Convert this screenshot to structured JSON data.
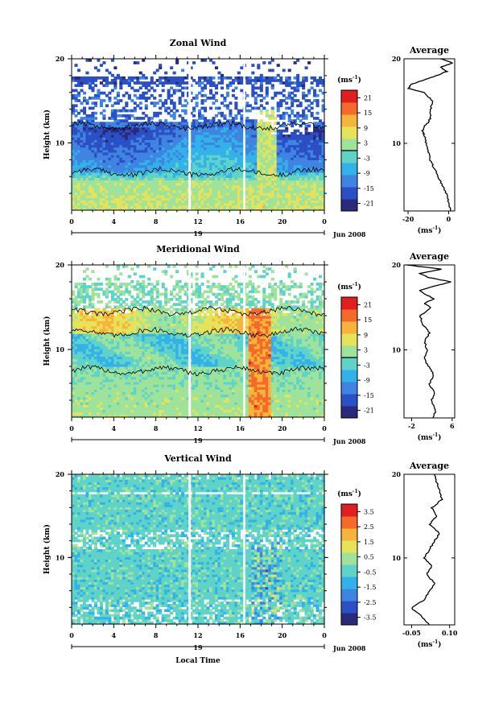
{
  "chart_data": [
    {
      "type": "heatmap",
      "title": "Zonal Wind",
      "ylabel": "Height (km)",
      "y_ticks": [
        "20",
        "10"
      ],
      "y_range": [
        2,
        20
      ],
      "x_ticks": [
        "0",
        "4",
        "8",
        "12",
        "16",
        "20",
        "0"
      ],
      "x_range": [
        0,
        24
      ],
      "day_label": "19",
      "date_label": "Jun 2008",
      "colorbar": {
        "unit": "(ms",
        "unit_exp": "-1",
        "unit_close": ")",
        "ticks": [
          "21",
          "15",
          "9",
          "3",
          "-3",
          "-9",
          "-15",
          "-21"
        ],
        "range": [
          -24,
          24
        ]
      },
      "average": {
        "title": "Average",
        "y_ticks": [
          "20",
          "10"
        ],
        "x_ticks": [
          "-20",
          "0"
        ],
        "x_range": [
          -22,
          3
        ],
        "xlabel": "(ms",
        "xlabel_exp": "-1",
        "xlabel_close": ")",
        "profile": [
          [
            2,
            1
          ],
          [
            3,
            0
          ],
          [
            4,
            -1
          ],
          [
            5,
            -3
          ],
          [
            6,
            -5
          ],
          [
            7,
            -7
          ],
          [
            8,
            -9
          ],
          [
            9,
            -10
          ],
          [
            10,
            -11
          ],
          [
            11,
            -12
          ],
          [
            11.5,
            -13
          ],
          [
            12,
            -12
          ],
          [
            12.5,
            -10
          ],
          [
            13,
            -9
          ],
          [
            14,
            -9
          ],
          [
            15,
            -8
          ],
          [
            16,
            -12
          ],
          [
            16.5,
            -20
          ],
          [
            17,
            -18
          ],
          [
            17.5,
            -12
          ],
          [
            18,
            -6
          ],
          [
            18.5,
            -1
          ],
          [
            19,
            -4
          ],
          [
            19.5,
            2
          ],
          [
            20,
            -4
          ]
        ]
      }
    },
    {
      "type": "heatmap",
      "title": "Meridional Wind",
      "ylabel": "Height (km)",
      "y_ticks": [
        "20",
        "10"
      ],
      "y_range": [
        2,
        20
      ],
      "x_ticks": [
        "0",
        "4",
        "8",
        "12",
        "16",
        "20",
        "0"
      ],
      "x_range": [
        0,
        24
      ],
      "day_label": "19",
      "date_label": "Jun 2008",
      "colorbar": {
        "unit": "(ms",
        "unit_exp": "-1",
        "unit_close": ")",
        "ticks": [
          "21",
          "15",
          "9",
          "3",
          "-3",
          "-9",
          "-15",
          "-21"
        ],
        "range": [
          -24,
          24
        ]
      },
      "average": {
        "title": "Average",
        "y_ticks": [
          "20",
          "10"
        ],
        "x_ticks": [
          "-2",
          "6"
        ],
        "x_range": [
          -3.5,
          6.5
        ],
        "xlabel": "(ms",
        "xlabel_exp": "-1",
        "xlabel_close": ")",
        "profile": [
          [
            2,
            2.2
          ],
          [
            3,
            2.8
          ],
          [
            4,
            1.9
          ],
          [
            5,
            2.5
          ],
          [
            6,
            1.5
          ],
          [
            7,
            2.4
          ],
          [
            8,
            1.4
          ],
          [
            9,
            0.5
          ],
          [
            10,
            1.0
          ],
          [
            11,
            0.6
          ],
          [
            12,
            1.5
          ],
          [
            13,
            0.2
          ],
          [
            14,
            -0.3
          ],
          [
            15,
            1.8
          ],
          [
            15.5,
            0.5
          ],
          [
            16,
            2.5
          ],
          [
            16.5,
            0.8
          ],
          [
            17,
            -0.5
          ],
          [
            17.5,
            2.5
          ],
          [
            18,
            5.8
          ],
          [
            18.5,
            1.5
          ],
          [
            19,
            -0.5
          ],
          [
            19.5,
            4
          ],
          [
            20,
            -3
          ]
        ]
      }
    },
    {
      "type": "heatmap",
      "title": "Vertical Wind",
      "ylabel": "Height (km)",
      "xlabel": "Local Time",
      "y_ticks": [
        "20",
        "10"
      ],
      "y_range": [
        2,
        20
      ],
      "x_ticks": [
        "0",
        "4",
        "8",
        "12",
        "16",
        "20",
        "0"
      ],
      "x_range": [
        0,
        24
      ],
      "day_label": "19",
      "date_label": "Jun 2008",
      "colorbar": {
        "unit": "(ms",
        "unit_exp": "-1",
        "unit_close": ")",
        "ticks": [
          "3.5",
          "2.5",
          "1.5",
          "0.5",
          "-0.5",
          "-1.5",
          "-2.5",
          "-3.5"
        ],
        "range": [
          -4,
          4
        ]
      },
      "average": {
        "title": "Average",
        "y_ticks": [
          "20",
          "10"
        ],
        "x_ticks": [
          "-0.05",
          "0.10"
        ],
        "x_range": [
          -0.08,
          0.12
        ],
        "xlabel": "(ms",
        "xlabel_exp": "-1",
        "xlabel_close": ")",
        "profile": [
          [
            2,
            0.02
          ],
          [
            3,
            -0.01
          ],
          [
            4,
            -0.05
          ],
          [
            5,
            0.0
          ],
          [
            6,
            0.02
          ],
          [
            7,
            0.04
          ],
          [
            8,
            0.01
          ],
          [
            9,
            0.03
          ],
          [
            10,
            0.0
          ],
          [
            11,
            0.02
          ],
          [
            12,
            0.04
          ],
          [
            13,
            0.06
          ],
          [
            14,
            0.02
          ],
          [
            15,
            0.05
          ],
          [
            16,
            0.03
          ],
          [
            17,
            0.07
          ],
          [
            18,
            0.06
          ],
          [
            19,
            0.05
          ],
          [
            20,
            0.04
          ]
        ]
      }
    }
  ],
  "colors": {
    "scale": [
      "#2a2a7a",
      "#2b4fc4",
      "#3f84e0",
      "#33b2ea",
      "#5fd3c8",
      "#9fe39b",
      "#e6e35a",
      "#f7b43a",
      "#f56a2a",
      "#e02020"
    ]
  }
}
